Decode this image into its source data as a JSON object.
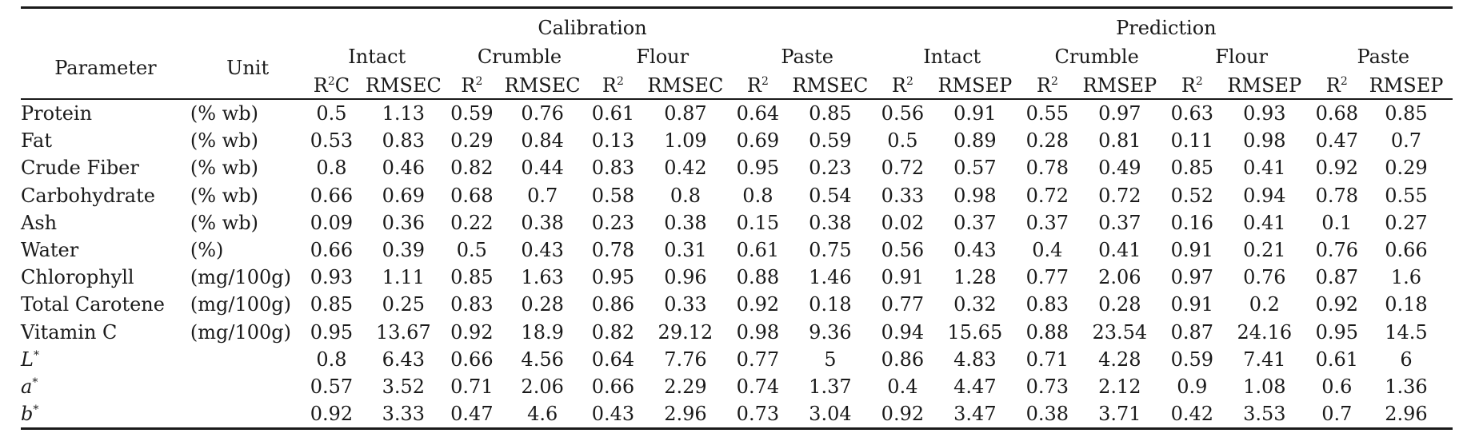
{
  "table": {
    "headers": {
      "parameter": "Parameter",
      "unit": "Unit",
      "groups": [
        "Calibration",
        "Prediction"
      ],
      "techniques": [
        "Intact",
        "Crumble",
        "Flour",
        "Paste",
        "Intact",
        "Crumble",
        "Flour",
        "Paste"
      ],
      "metrics": [
        [
          "R",
          "2",
          "C"
        ],
        [
          "RMSEC"
        ],
        [
          "R",
          "2",
          ""
        ],
        [
          "RMSEC"
        ],
        [
          "R",
          "2",
          ""
        ],
        [
          "RMSEC"
        ],
        [
          "R",
          "2",
          ""
        ],
        [
          "RMSEC"
        ],
        [
          "R",
          "2",
          ""
        ],
        [
          "RMSEP"
        ],
        [
          "R",
          "2",
          ""
        ],
        [
          "RMSEP"
        ],
        [
          "R",
          "2",
          ""
        ],
        [
          "RMSEP"
        ],
        [
          "R",
          "2",
          ""
        ],
        [
          "RMSEP"
        ]
      ]
    },
    "rows": [
      {
        "param": "Protein",
        "param_sup": "",
        "italic": false,
        "unit": "(% wb)",
        "values": [
          "0.5",
          "1.13",
          "0.59",
          "0.76",
          "0.61",
          "0.87",
          "0.64",
          "0.85",
          "0.56",
          "0.91",
          "0.55",
          "0.97",
          "0.63",
          "0.93",
          "0.68",
          "0.85"
        ]
      },
      {
        "param": "Fat",
        "param_sup": "",
        "italic": false,
        "unit": "(% wb)",
        "values": [
          "0.53",
          "0.83",
          "0.29",
          "0.84",
          "0.13",
          "1.09",
          "0.69",
          "0.59",
          "0.5",
          "0.89",
          "0.28",
          "0.81",
          "0.11",
          "0.98",
          "0.47",
          "0.7"
        ]
      },
      {
        "param": "Crude Fiber",
        "param_sup": "",
        "italic": false,
        "unit": "(% wb)",
        "values": [
          "0.8",
          "0.46",
          "0.82",
          "0.44",
          "0.83",
          "0.42",
          "0.95",
          "0.23",
          "0.72",
          "0.57",
          "0.78",
          "0.49",
          "0.85",
          "0.41",
          "0.92",
          "0.29"
        ]
      },
      {
        "param": "Carbohydrate",
        "param_sup": "",
        "italic": false,
        "unit": "(% wb)",
        "values": [
          "0.66",
          "0.69",
          "0.68",
          "0.7",
          "0.58",
          "0.8",
          "0.8",
          "0.54",
          "0.33",
          "0.98",
          "0.72",
          "0.72",
          "0.52",
          "0.94",
          "0.78",
          "0.55"
        ]
      },
      {
        "param": "Ash",
        "param_sup": "",
        "italic": false,
        "unit": "(% wb)",
        "values": [
          "0.09",
          "0.36",
          "0.22",
          "0.38",
          "0.23",
          "0.38",
          "0.15",
          "0.38",
          "0.02",
          "0.37",
          "0.37",
          "0.37",
          "0.16",
          "0.41",
          "0.1",
          "0.27"
        ]
      },
      {
        "param": "Water",
        "param_sup": "",
        "italic": false,
        "unit": "(%)",
        "values": [
          "0.66",
          "0.39",
          "0.5",
          "0.43",
          "0.78",
          "0.31",
          "0.61",
          "0.75",
          "0.56",
          "0.43",
          "0.4",
          "0.41",
          "0.91",
          "0.21",
          "0.76",
          "0.66"
        ]
      },
      {
        "param": "Chlorophyll",
        "param_sup": "",
        "italic": false,
        "unit": "(mg/100g)",
        "values": [
          "0.93",
          "1.11",
          "0.85",
          "1.63",
          "0.95",
          "0.96",
          "0.88",
          "1.46",
          "0.91",
          "1.28",
          "0.77",
          "2.06",
          "0.97",
          "0.76",
          "0.87",
          "1.6"
        ]
      },
      {
        "param": "Total Carotene",
        "param_sup": "",
        "italic": false,
        "unit": "(mg/100g)",
        "values": [
          "0.85",
          "0.25",
          "0.83",
          "0.28",
          "0.86",
          "0.33",
          "0.92",
          "0.18",
          "0.77",
          "0.32",
          "0.83",
          "0.28",
          "0.91",
          "0.2",
          "0.92",
          "0.18"
        ]
      },
      {
        "param": "Vitamin C",
        "param_sup": "",
        "italic": false,
        "unit": "(mg/100g)",
        "values": [
          "0.95",
          "13.67",
          "0.92",
          "18.9",
          "0.82",
          "29.12",
          "0.98",
          "9.36",
          "0.94",
          "15.65",
          "0.88",
          "23.54",
          "0.87",
          "24.16",
          "0.95",
          "14.5"
        ]
      },
      {
        "param": "L",
        "param_sup": "*",
        "italic": true,
        "unit": "",
        "values": [
          "0.8",
          "6.43",
          "0.66",
          "4.56",
          "0.64",
          "7.76",
          "0.77",
          "5",
          "0.86",
          "4.83",
          "0.71",
          "4.28",
          "0.59",
          "7.41",
          "0.61",
          "6"
        ]
      },
      {
        "param": "a",
        "param_sup": "*",
        "italic": true,
        "unit": "",
        "values": [
          "0.57",
          "3.52",
          "0.71",
          "2.06",
          "0.66",
          "2.29",
          "0.74",
          "1.37",
          "0.4",
          "4.47",
          "0.73",
          "2.12",
          "0.9",
          "1.08",
          "0.6",
          "1.36"
        ]
      },
      {
        "param": "b",
        "param_sup": "*",
        "italic": true,
        "unit": "",
        "values": [
          "0.92",
          "3.33",
          "0.47",
          "4.6",
          "0.43",
          "2.96",
          "0.73",
          "3.04",
          "0.92",
          "3.47",
          "0.38",
          "3.71",
          "0.42",
          "3.53",
          "0.7",
          "2.96"
        ]
      }
    ]
  }
}
